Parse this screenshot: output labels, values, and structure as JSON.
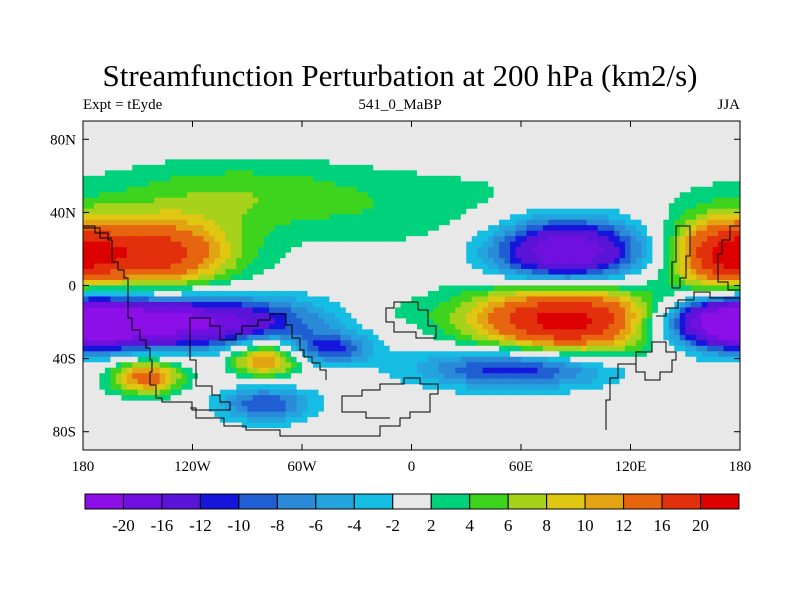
{
  "chart_data": {
    "type": "heatmap",
    "title": "Streamfunction Perturbation at 200 hPa (km2/s)",
    "left_label": "Expt = tEyde",
    "center_label": "541_0_MaBP",
    "right_label": "JJA",
    "x_ticks": [
      {
        "value": -180,
        "label": "180"
      },
      {
        "value": -120,
        "label": "120W"
      },
      {
        "value": -60,
        "label": "60W"
      },
      {
        "value": 0,
        "label": "0"
      },
      {
        "value": 60,
        "label": "60E"
      },
      {
        "value": 120,
        "label": "120E"
      },
      {
        "value": 180,
        "label": "180"
      }
    ],
    "y_ticks": [
      {
        "value": 80,
        "label": "80N"
      },
      {
        "value": 40,
        "label": "40N"
      },
      {
        "value": 0,
        "label": "0"
      },
      {
        "value": -40,
        "label": "40S"
      },
      {
        "value": -80,
        "label": "80S"
      }
    ],
    "xlim": [
      -180,
      180
    ],
    "ylim": [
      -90,
      90
    ],
    "colorbar": {
      "levels": [
        "-20",
        "-16",
        "-12",
        "-10",
        "-8",
        "-6",
        "-4",
        "-2",
        "2",
        "4",
        "6",
        "8",
        "10",
        "12",
        "16",
        "20"
      ],
      "colors": [
        "#8c0fe8",
        "#6f10e0",
        "#5a14d8",
        "#1515dc",
        "#1f5fd2",
        "#2a8ad8",
        "#23a4de",
        "#16bde2",
        "#e8e8e8",
        "#00d27c",
        "#3ed41e",
        "#a6d21b",
        "#e0c712",
        "#e3a413",
        "#e7650f",
        "#e2300c",
        "#dd0000"
      ]
    },
    "centers": [
      {
        "lon": -140,
        "lat": 17,
        "value": 18,
        "sx": 30,
        "sy": 14
      },
      {
        "lon": 170,
        "lat": 17,
        "value": 18,
        "sx": 20,
        "sy": 14
      },
      {
        "lon": 85,
        "lat": -18,
        "value": 23,
        "sx": 38,
        "sy": 15
      },
      {
        "lon": 85,
        "lat": 18,
        "value": -22,
        "sx": 30,
        "sy": 14
      },
      {
        "lon": -130,
        "lat": -20,
        "value": -22,
        "sx": 50,
        "sy": 10
      },
      {
        "lon": 175,
        "lat": -20,
        "value": -21,
        "sx": 25,
        "sy": 10
      },
      {
        "lon": 60,
        "lat": -45,
        "value": -14,
        "sx": 38,
        "sy": 8
      },
      {
        "lon": -45,
        "lat": -35,
        "value": -10,
        "sx": 16,
        "sy": 6
      },
      {
        "lon": -80,
        "lat": -40,
        "value": 14,
        "sx": 14,
        "sy": 7
      },
      {
        "lon": -145,
        "lat": -50,
        "value": 14,
        "sx": 14,
        "sy": 7
      },
      {
        "lon": -80,
        "lat": -65,
        "value": -10,
        "sx": 18,
        "sy": 7
      },
      {
        "lon": 30,
        "lat": 40,
        "value": 3,
        "sx": 80,
        "sy": 18
      },
      {
        "lon": -100,
        "lat": 50,
        "value": 5,
        "sx": 55,
        "sy": 14
      },
      {
        "lon": -10,
        "lat": -15,
        "value": 2,
        "sx": 20,
        "sy": 6
      }
    ]
  }
}
